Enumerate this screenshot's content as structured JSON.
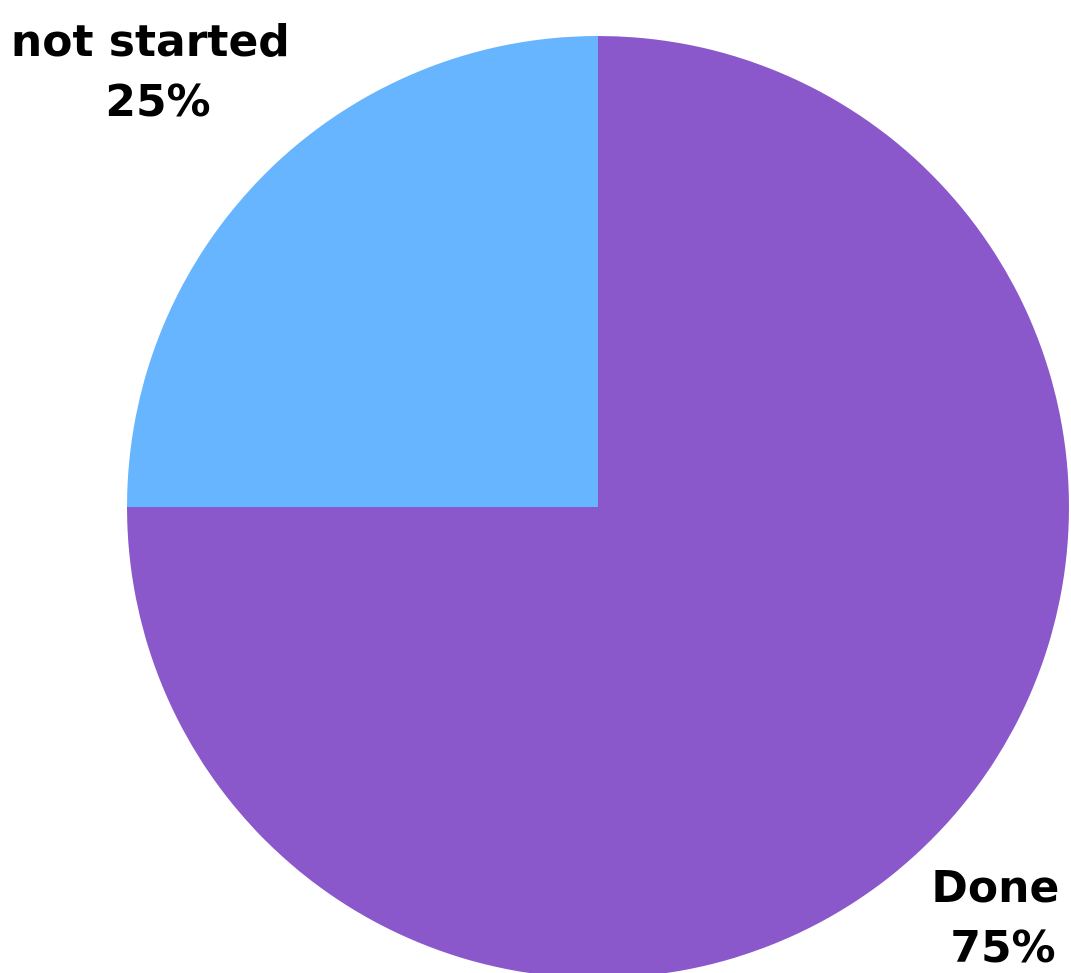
{
  "chart_data": {
    "type": "pie",
    "title": "",
    "start_angle_deg": 0,
    "direction": "clockwise",
    "slices": [
      {
        "label": "Done",
        "value": 75,
        "percent_label": "75%",
        "color": "#8A58CB"
      },
      {
        "label": "not started",
        "value": 25,
        "percent_label": "25%",
        "color": "#67B5FE"
      }
    ]
  }
}
